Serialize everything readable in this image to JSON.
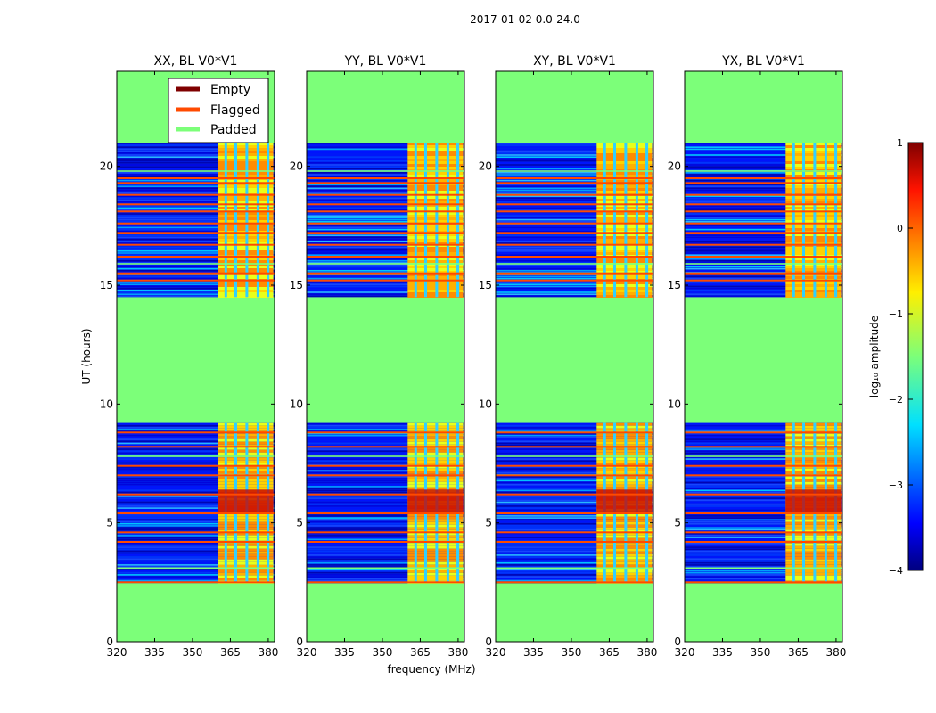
{
  "suptitle": "2017-01-02 0.0-24.0",
  "chart_data": {
    "type": "heatmap",
    "title": "2017-01-02 0.0-24.0",
    "xlabel": "frequency (MHz)",
    "ylabel": "UT (hours)",
    "xlim": [
      320,
      382.5
    ],
    "ylim": [
      0,
      24
    ],
    "xticks": [
      320,
      335,
      350,
      365,
      380
    ],
    "yticks": [
      0,
      5,
      10,
      15,
      20
    ],
    "panels": [
      {
        "title": "XX, BL V0*V1",
        "pol": "XX"
      },
      {
        "title": "YY, BL V0*V1",
        "pol": "YY"
      },
      {
        "title": "XY, BL V0*V1",
        "pol": "XY"
      },
      {
        "title": "YX, BL V0*V1",
        "pol": "YX"
      }
    ],
    "padded_ut_ranges": [
      [
        0,
        2.5
      ],
      [
        9.2,
        14.5
      ],
      [
        21.0,
        24.0
      ]
    ],
    "data_ut_ranges": [
      [
        2.5,
        9.2
      ],
      [
        14.5,
        21.0
      ]
    ],
    "rfi_band_mhz": [
      360,
      382
    ],
    "flagged_ut_rows": [
      2.5,
      4.2,
      4.6,
      5.4,
      6.2,
      7.0,
      7.4,
      8.2,
      8.8,
      15.2,
      15.5,
      16.2,
      16.7,
      17.2,
      17.6,
      18.1,
      18.4,
      18.8,
      19.3,
      19.5
    ],
    "legend": {
      "location": "upper-right of first panel",
      "entries": [
        {
          "label": "Empty",
          "color": "#7f0000"
        },
        {
          "label": "Flagged",
          "color": "#ff4a00"
        },
        {
          "label": "Padded",
          "color": "#7cff79"
        }
      ]
    },
    "colorbar": {
      "label": "log₁₀ amplitude",
      "range": [
        -4,
        1
      ],
      "ticks": [
        "1",
        "0",
        "−1",
        "−2",
        "−3",
        "−4"
      ],
      "colormap": "jet"
    }
  }
}
